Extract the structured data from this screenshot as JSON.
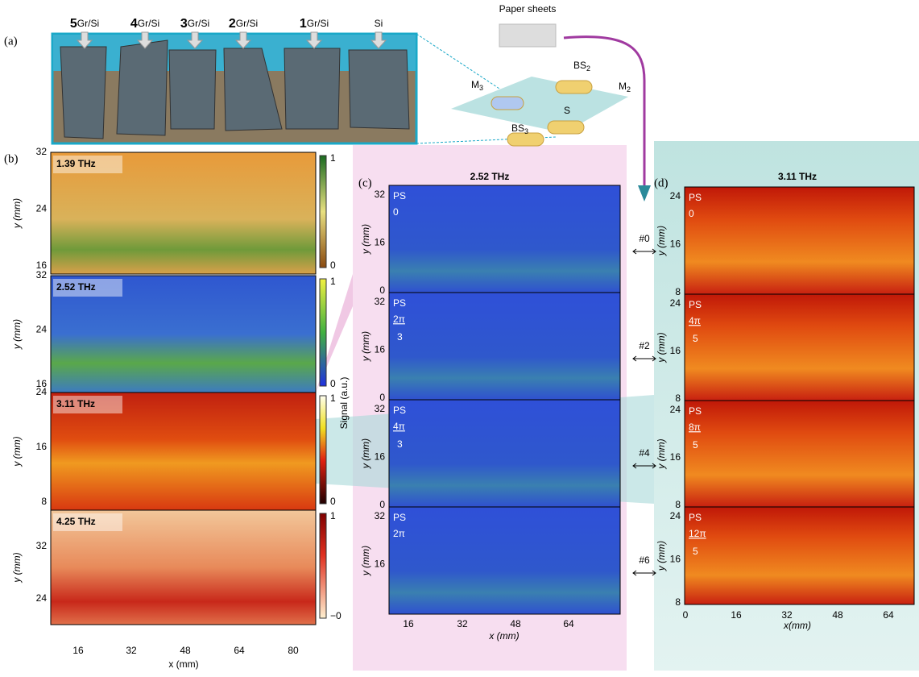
{
  "panel_a": {
    "label": "(a)",
    "samples": [
      {
        "num": "5",
        "text": "Gr/Si"
      },
      {
        "num": "4",
        "text": "Gr/Si"
      },
      {
        "num": "3",
        "text": "Gr/Si"
      },
      {
        "num": "2",
        "text": "Gr/Si"
      },
      {
        "num": "1",
        "text": "Gr/Si"
      },
      {
        "text": "Si"
      }
    ],
    "paper": "Paper sheets",
    "optics": [
      {
        "base": "BS",
        "sub": "2"
      },
      {
        "base": "M",
        "sub": "3"
      },
      {
        "base": "M",
        "sub": "2"
      },
      {
        "base": "S"
      },
      {
        "base": "BS",
        "sub": "3"
      }
    ]
  },
  "panel_b": {
    "label": "(b)",
    "ylabel": "y (mm)",
    "xlabel": "x (mm)",
    "xticks": [
      16,
      32,
      48,
      64,
      80
    ],
    "cbar_label": "Signal (a.u.)",
    "maps": [
      {
        "freq": "1.39 THz",
        "yticks": [
          32,
          24,
          16
        ],
        "cbar": [
          1,
          0
        ]
      },
      {
        "freq": "2.52 THz",
        "yticks": [
          32,
          24,
          16
        ],
        "cbar": [
          1,
          0
        ]
      },
      {
        "freq": "3.11 THz",
        "yticks": [
          24,
          16,
          8
        ],
        "cbar": [
          1,
          0
        ]
      },
      {
        "freq": "4.25 THz",
        "yticks": [
          32,
          24
        ],
        "cbar": [
          1,
          "−0"
        ]
      }
    ]
  },
  "panel_c": {
    "label": "(c)",
    "title": "2.52 THz",
    "ylabel": "y (mm)",
    "xlabel": "x (mm)",
    "xticks": [
      16,
      32,
      48,
      64
    ],
    "maps": [
      {
        "ps": "PS",
        "num": "0",
        "yticks": [
          32,
          16,
          0
        ],
        "sample": "#0"
      },
      {
        "ps": "PS",
        "num": "2π",
        "den": "3",
        "yticks": [
          32,
          16,
          0
        ],
        "sample": "#2"
      },
      {
        "ps": "PS",
        "num": "4π",
        "den": "3",
        "yticks": [
          32,
          16,
          0
        ],
        "sample": "#4"
      },
      {
        "ps": "PS",
        "num": "2π",
        "yticks": [
          32,
          16
        ],
        "sample": "#6"
      }
    ]
  },
  "panel_d": {
    "label": "(d)",
    "title": "3.11 THz",
    "ylabel": "y (mm)",
    "xlabel": "x(mm)",
    "xticks": [
      0,
      16,
      32,
      48,
      64
    ],
    "maps": [
      {
        "ps": "PS",
        "num": "0",
        "yticks": [
          24,
          16,
          8
        ]
      },
      {
        "ps": "PS",
        "num": "4π",
        "den": "5",
        "yticks": [
          24,
          16,
          8
        ]
      },
      {
        "ps": "PS",
        "num": "8π",
        "den": "5",
        "yticks": [
          24,
          16,
          8
        ]
      },
      {
        "ps": "PS",
        "num": "12π",
        "den": "5",
        "yticks": [
          24,
          16,
          8
        ]
      }
    ]
  }
}
